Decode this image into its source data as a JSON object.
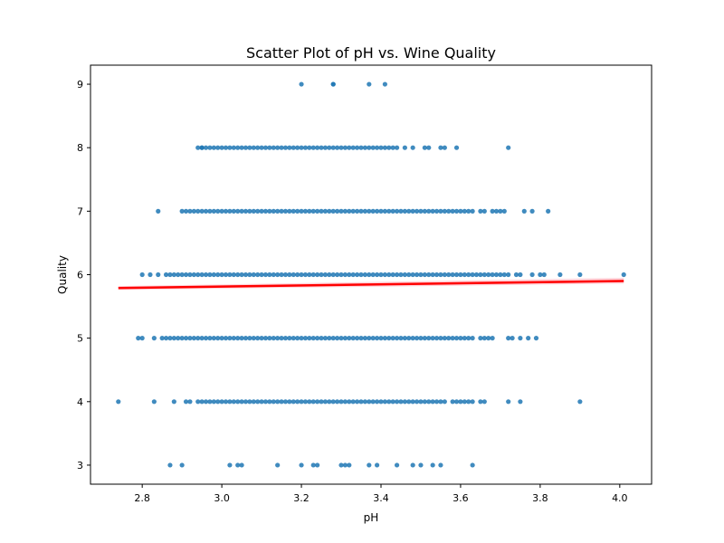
{
  "chart_data": {
    "type": "scatter",
    "title": "Scatter Plot of pH vs. Wine Quality",
    "xlabel": "pH",
    "ylabel": "Quality",
    "xlim": [
      2.67,
      4.08
    ],
    "ylim": [
      2.7,
      9.3
    ],
    "grid": false,
    "legend": "none",
    "x_ticks": [
      "2.8",
      "3.0",
      "3.2",
      "3.4",
      "3.6",
      "3.8",
      "4.0"
    ],
    "y_ticks": [
      "3",
      "4",
      "5",
      "6",
      "7",
      "8",
      "9"
    ],
    "colors": {
      "points": "#1f77b4",
      "fit_line": "#ff0000",
      "confidence_band": "#ffb6c1"
    },
    "series": [
      {
        "type": "scatter",
        "groups": [
          {
            "quality": 3,
            "x": [
              2.87,
              2.9,
              3.02,
              3.04,
              3.05,
              3.14,
              3.2,
              3.23,
              3.24,
              3.3,
              3.31,
              3.32,
              3.37,
              3.39,
              3.44,
              3.48,
              3.5,
              3.53,
              3.55,
              3.63
            ]
          },
          {
            "quality": 4,
            "range": [
              2.94,
              3.56
            ],
            "step": 0.01,
            "extra": [
              2.74,
              2.83,
              2.88,
              2.91,
              2.92,
              3.58,
              3.59,
              3.6,
              3.61,
              3.62,
              3.63,
              3.65,
              3.66,
              3.72,
              3.75,
              3.9
            ]
          },
          {
            "quality": 5,
            "range": [
              2.85,
              3.63
            ],
            "step": 0.01,
            "extra": [
              2.79,
              2.8,
              2.83,
              3.65,
              3.66,
              3.67,
              3.68,
              3.72,
              3.73,
              3.75,
              3.77,
              3.79
            ]
          },
          {
            "quality": 6,
            "range": [
              2.86,
              3.72
            ],
            "step": 0.01,
            "extra": [
              2.8,
              2.82,
              2.84,
              3.74,
              3.75,
              3.78,
              3.8,
              3.81,
              3.85,
              3.9,
              4.01
            ]
          },
          {
            "quality": 7,
            "range": [
              2.9,
              3.6
            ],
            "step": 0.01,
            "extra": [
              2.84,
              3.61,
              3.62,
              3.63,
              3.65,
              3.66,
              3.68,
              3.69,
              3.7,
              3.71,
              3.76,
              3.78,
              3.82
            ]
          },
          {
            "quality": 8,
            "range": [
              2.94,
              3.44
            ],
            "step": 0.01,
            "extra": [
              2.95,
              3.46,
              3.48,
              3.51,
              3.52,
              3.55,
              3.56,
              3.59,
              3.72
            ]
          },
          {
            "quality": 9,
            "x": [
              3.2,
              3.28,
              3.28,
              3.37,
              3.41
            ]
          }
        ]
      },
      {
        "type": "line",
        "x": [
          2.74,
          4.01
        ],
        "y": [
          5.79,
          5.9
        ],
        "band": {
          "lower": [
            5.76,
            5.86
          ],
          "upper": [
            5.82,
            5.95
          ]
        }
      }
    ]
  }
}
